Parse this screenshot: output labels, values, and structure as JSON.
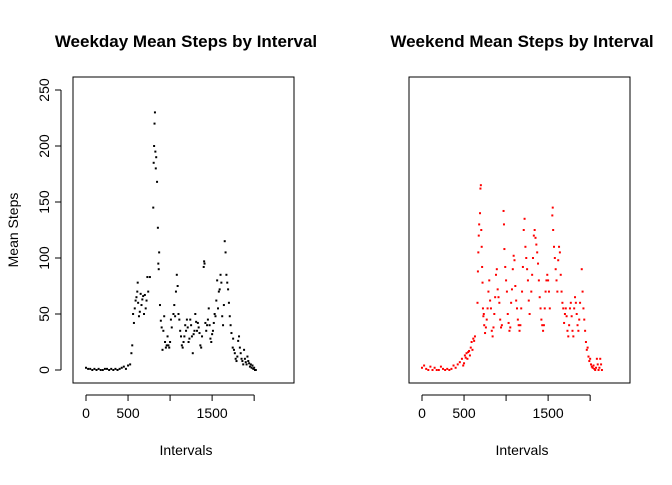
{
  "chart_data": [
    {
      "type": "scatter",
      "title": "Weekday Mean Steps by Interval",
      "xlabel": "Intervals",
      "ylabel": "Mean Steps",
      "xlim": [
        0,
        2355
      ],
      "ylim": [
        0,
        250
      ],
      "x_ticks": [
        0,
        500,
        1500
      ],
      "x_tick_labels": [
        "0",
        "500",
        "1500"
      ],
      "x_unlabeled_ticks": [
        1000,
        2000
      ],
      "y_ticks": [
        0,
        50,
        100,
        150,
        200,
        250
      ],
      "y_tick_labels": [
        "0",
        "50",
        "100",
        "150",
        "200",
        "250"
      ],
      "grid": false,
      "show_y_axis": true,
      "color": "#000000",
      "points": [
        [
          0,
          2
        ],
        [
          25,
          1
        ],
        [
          50,
          1
        ],
        [
          75,
          0
        ],
        [
          100,
          1
        ],
        [
          125,
          0
        ],
        [
          150,
          1
        ],
        [
          175,
          0
        ],
        [
          200,
          0
        ],
        [
          225,
          1
        ],
        [
          250,
          1
        ],
        [
          275,
          0
        ],
        [
          300,
          1
        ],
        [
          325,
          0
        ],
        [
          350,
          1
        ],
        [
          375,
          0
        ],
        [
          400,
          1
        ],
        [
          425,
          2
        ],
        [
          450,
          3
        ],
        [
          475,
          1
        ],
        [
          500,
          4
        ],
        [
          525,
          5
        ],
        [
          540,
          15
        ],
        [
          550,
          22
        ],
        [
          560,
          50
        ],
        [
          570,
          42
        ],
        [
          580,
          55
        ],
        [
          590,
          62
        ],
        [
          600,
          65
        ],
        [
          610,
          70
        ],
        [
          615,
          78
        ],
        [
          620,
          60
        ],
        [
          630,
          48
        ],
        [
          640,
          52
        ],
        [
          650,
          68
        ],
        [
          660,
          58
        ],
        [
          670,
          63
        ],
        [
          680,
          66
        ],
        [
          690,
          50
        ],
        [
          700,
          67
        ],
        [
          710,
          55
        ],
        [
          720,
          62
        ],
        [
          730,
          83
        ],
        [
          740,
          70
        ],
        [
          760,
          83
        ],
        [
          800,
          145
        ],
        [
          805,
          185
        ],
        [
          810,
          200
        ],
        [
          815,
          220
        ],
        [
          820,
          230
        ],
        [
          825,
          195
        ],
        [
          830,
          180
        ],
        [
          835,
          190
        ],
        [
          845,
          168
        ],
        [
          855,
          127
        ],
        [
          860,
          95
        ],
        [
          865,
          90
        ],
        [
          870,
          105
        ],
        [
          880,
          58
        ],
        [
          890,
          44
        ],
        [
          900,
          38
        ],
        [
          910,
          18
        ],
        [
          920,
          35
        ],
        [
          930,
          48
        ],
        [
          940,
          25
        ],
        [
          950,
          20
        ],
        [
          960,
          22
        ],
        [
          970,
          30
        ],
        [
          980,
          22
        ],
        [
          990,
          20
        ],
        [
          1000,
          25
        ],
        [
          1010,
          45
        ],
        [
          1020,
          38
        ],
        [
          1040,
          50
        ],
        [
          1050,
          58
        ],
        [
          1060,
          48
        ],
        [
          1070,
          70
        ],
        [
          1080,
          85
        ],
        [
          1090,
          75
        ],
        [
          1100,
          50
        ],
        [
          1110,
          45
        ],
        [
          1120,
          35
        ],
        [
          1130,
          30
        ],
        [
          1140,
          22
        ],
        [
          1150,
          20
        ],
        [
          1160,
          25
        ],
        [
          1170,
          30
        ],
        [
          1180,
          40
        ],
        [
          1190,
          35
        ],
        [
          1200,
          45
        ],
        [
          1210,
          38
        ],
        [
          1220,
          25
        ],
        [
          1230,
          28
        ],
        [
          1240,
          45
        ],
        [
          1250,
          40
        ],
        [
          1260,
          30
        ],
        [
          1270,
          15
        ],
        [
          1280,
          32
        ],
        [
          1290,
          35
        ],
        [
          1300,
          50
        ],
        [
          1310,
          43
        ],
        [
          1320,
          35
        ],
        [
          1330,
          42
        ],
        [
          1340,
          38
        ],
        [
          1350,
          33
        ],
        [
          1360,
          22
        ],
        [
          1370,
          20
        ],
        [
          1380,
          30
        ],
        [
          1400,
          92
        ],
        [
          1405,
          97
        ],
        [
          1410,
          95
        ],
        [
          1420,
          42
        ],
        [
          1430,
          35
        ],
        [
          1440,
          40
        ],
        [
          1450,
          45
        ],
        [
          1460,
          55
        ],
        [
          1470,
          40
        ],
        [
          1480,
          28
        ],
        [
          1490,
          25
        ],
        [
          1500,
          32
        ],
        [
          1510,
          35
        ],
        [
          1520,
          42
        ],
        [
          1530,
          50
        ],
        [
          1540,
          48
        ],
        [
          1550,
          62
        ],
        [
          1560,
          80
        ],
        [
          1570,
          55
        ],
        [
          1580,
          70
        ],
        [
          1590,
          72
        ],
        [
          1600,
          85
        ],
        [
          1610,
          78
        ],
        [
          1620,
          48
        ],
        [
          1630,
          40
        ],
        [
          1640,
          58
        ],
        [
          1650,
          115
        ],
        [
          1660,
          105
        ],
        [
          1670,
          85
        ],
        [
          1680,
          78
        ],
        [
          1690,
          72
        ],
        [
          1700,
          60
        ],
        [
          1710,
          48
        ],
        [
          1720,
          40
        ],
        [
          1730,
          33
        ],
        [
          1745,
          20
        ],
        [
          1750,
          28
        ],
        [
          1760,
          18
        ],
        [
          1770,
          15
        ],
        [
          1780,
          10
        ],
        [
          1790,
          8
        ],
        [
          1800,
          12
        ],
        [
          1810,
          26
        ],
        [
          1820,
          30
        ],
        [
          1830,
          20
        ],
        [
          1840,
          15
        ],
        [
          1850,
          10
        ],
        [
          1860,
          8
        ],
        [
          1870,
          5
        ],
        [
          1880,
          18
        ],
        [
          1890,
          10
        ],
        [
          1900,
          7
        ],
        [
          1910,
          5
        ],
        [
          1920,
          12
        ],
        [
          1930,
          8
        ],
        [
          1940,
          6
        ],
        [
          1950,
          3
        ],
        [
          1960,
          5
        ],
        [
          1970,
          2
        ],
        [
          1980,
          4
        ],
        [
          1990,
          1
        ],
        [
          2000,
          2
        ],
        [
          2010,
          0
        ],
        [
          2020,
          0
        ]
      ]
    },
    {
      "type": "scatter",
      "title": "Weekend Mean Steps by Interval",
      "xlabel": "Intervals",
      "ylabel": "",
      "xlim": [
        0,
        2355
      ],
      "ylim": [
        0,
        250
      ],
      "x_ticks": [
        0,
        500,
        1500
      ],
      "x_tick_labels": [
        "0",
        "500",
        "1500"
      ],
      "x_unlabeled_ticks": [
        1000,
        2000
      ],
      "y_ticks": [],
      "y_tick_labels": [],
      "grid": false,
      "show_y_axis": false,
      "color": "#ff0000",
      "points": [
        [
          0,
          2
        ],
        [
          25,
          4
        ],
        [
          50,
          1
        ],
        [
          75,
          0
        ],
        [
          100,
          3
        ],
        [
          125,
          0
        ],
        [
          150,
          2
        ],
        [
          175,
          0
        ],
        [
          200,
          0
        ],
        [
          225,
          3
        ],
        [
          250,
          1
        ],
        [
          275,
          0
        ],
        [
          300,
          1
        ],
        [
          325,
          0
        ],
        [
          350,
          1
        ],
        [
          375,
          4
        ],
        [
          400,
          2
        ],
        [
          425,
          5
        ],
        [
          450,
          7
        ],
        [
          475,
          10
        ],
        [
          490,
          4
        ],
        [
          500,
          6
        ],
        [
          510,
          13
        ],
        [
          520,
          11
        ],
        [
          530,
          15
        ],
        [
          540,
          10
        ],
        [
          550,
          16
        ],
        [
          560,
          17
        ],
        [
          570,
          13
        ],
        [
          580,
          20
        ],
        [
          590,
          25
        ],
        [
          600,
          18
        ],
        [
          610,
          28
        ],
        [
          620,
          26
        ],
        [
          630,
          30
        ],
        [
          660,
          60
        ],
        [
          665,
          88
        ],
        [
          670,
          105
        ],
        [
          675,
          120
        ],
        [
          680,
          130
        ],
        [
          690,
          140
        ],
        [
          695,
          162
        ],
        [
          700,
          165
        ],
        [
          705,
          125
        ],
        [
          710,
          110
        ],
        [
          715,
          92
        ],
        [
          720,
          78
        ],
        [
          725,
          55
        ],
        [
          730,
          48
        ],
        [
          735,
          50
        ],
        [
          740,
          40
        ],
        [
          750,
          33
        ],
        [
          760,
          38
        ],
        [
          770,
          45
        ],
        [
          780,
          55
        ],
        [
          790,
          70
        ],
        [
          800,
          80
        ],
        [
          810,
          62
        ],
        [
          820,
          55
        ],
        [
          830,
          35
        ],
        [
          840,
          30
        ],
        [
          850,
          38
        ],
        [
          860,
          50
        ],
        [
          870,
          65
        ],
        [
          880,
          85
        ],
        [
          890,
          90
        ],
        [
          900,
          72
        ],
        [
          910,
          65
        ],
        [
          920,
          60
        ],
        [
          930,
          45
        ],
        [
          940,
          38
        ],
        [
          950,
          40
        ],
        [
          970,
          142
        ],
        [
          975,
          130
        ],
        [
          980,
          108
        ],
        [
          990,
          92
        ],
        [
          1000,
          80
        ],
        [
          1010,
          70
        ],
        [
          1020,
          50
        ],
        [
          1030,
          42
        ],
        [
          1040,
          35
        ],
        [
          1050,
          38
        ],
        [
          1060,
          60
        ],
        [
          1070,
          72
        ],
        [
          1080,
          90
        ],
        [
          1090,
          102
        ],
        [
          1100,
          98
        ],
        [
          1110,
          75
        ],
        [
          1120,
          62
        ],
        [
          1130,
          55
        ],
        [
          1140,
          45
        ],
        [
          1150,
          40
        ],
        [
          1160,
          35
        ],
        [
          1170,
          40
        ],
        [
          1180,
          55
        ],
        [
          1190,
          70
        ],
        [
          1200,
          92
        ],
        [
          1210,
          125
        ],
        [
          1220,
          135
        ],
        [
          1230,
          110
        ],
        [
          1240,
          100
        ],
        [
          1250,
          90
        ],
        [
          1260,
          80
        ],
        [
          1270,
          62
        ],
        [
          1280,
          50
        ],
        [
          1300,
          70
        ],
        [
          1310,
          85
        ],
        [
          1320,
          100
        ],
        [
          1330,
          120
        ],
        [
          1340,
          125
        ],
        [
          1350,
          118
        ],
        [
          1360,
          112
        ],
        [
          1370,
          105
        ],
        [
          1380,
          95
        ],
        [
          1390,
          80
        ],
        [
          1400,
          65
        ],
        [
          1410,
          55
        ],
        [
          1420,
          45
        ],
        [
          1430,
          40
        ],
        [
          1440,
          35
        ],
        [
          1450,
          40
        ],
        [
          1460,
          55
        ],
        [
          1470,
          70
        ],
        [
          1480,
          80
        ],
        [
          1490,
          85
        ],
        [
          1500,
          80
        ],
        [
          1510,
          70
        ],
        [
          1520,
          55
        ],
        [
          1550,
          138
        ],
        [
          1555,
          145
        ],
        [
          1560,
          125
        ],
        [
          1570,
          110
        ],
        [
          1580,
          100
        ],
        [
          1590,
          90
        ],
        [
          1600,
          80
        ],
        [
          1610,
          70
        ],
        [
          1620,
          98
        ],
        [
          1630,
          110
        ],
        [
          1640,
          105
        ],
        [
          1650,
          85
        ],
        [
          1660,
          70
        ],
        [
          1670,
          60
        ],
        [
          1680,
          55
        ],
        [
          1690,
          42
        ],
        [
          1700,
          50
        ],
        [
          1710,
          55
        ],
        [
          1720,
          48
        ],
        [
          1730,
          35
        ],
        [
          1740,
          30
        ],
        [
          1750,
          40
        ],
        [
          1760,
          55
        ],
        [
          1770,
          60
        ],
        [
          1780,
          48
        ],
        [
          1790,
          35
        ],
        [
          1800,
          30
        ],
        [
          1810,
          55
        ],
        [
          1820,
          65
        ],
        [
          1830,
          60
        ],
        [
          1840,
          50
        ],
        [
          1850,
          40
        ],
        [
          1860,
          35
        ],
        [
          1870,
          45
        ],
        [
          1880,
          60
        ],
        [
          1900,
          90
        ],
        [
          1910,
          70
        ],
        [
          1920,
          55
        ],
        [
          1930,
          45
        ],
        [
          1940,
          35
        ],
        [
          1950,
          25
        ],
        [
          1960,
          18
        ],
        [
          1970,
          20
        ],
        [
          1980,
          12
        ],
        [
          1990,
          8
        ],
        [
          2000,
          10
        ],
        [
          2010,
          5
        ],
        [
          2020,
          3
        ],
        [
          2030,
          2
        ],
        [
          2040,
          4
        ],
        [
          2050,
          1
        ],
        [
          2060,
          0
        ],
        [
          2070,
          2
        ],
        [
          2080,
          10
        ],
        [
          2090,
          5
        ],
        [
          2100,
          0
        ],
        [
          2110,
          2
        ],
        [
          2120,
          10
        ],
        [
          2130,
          5
        ],
        [
          2140,
          0
        ]
      ]
    }
  ]
}
